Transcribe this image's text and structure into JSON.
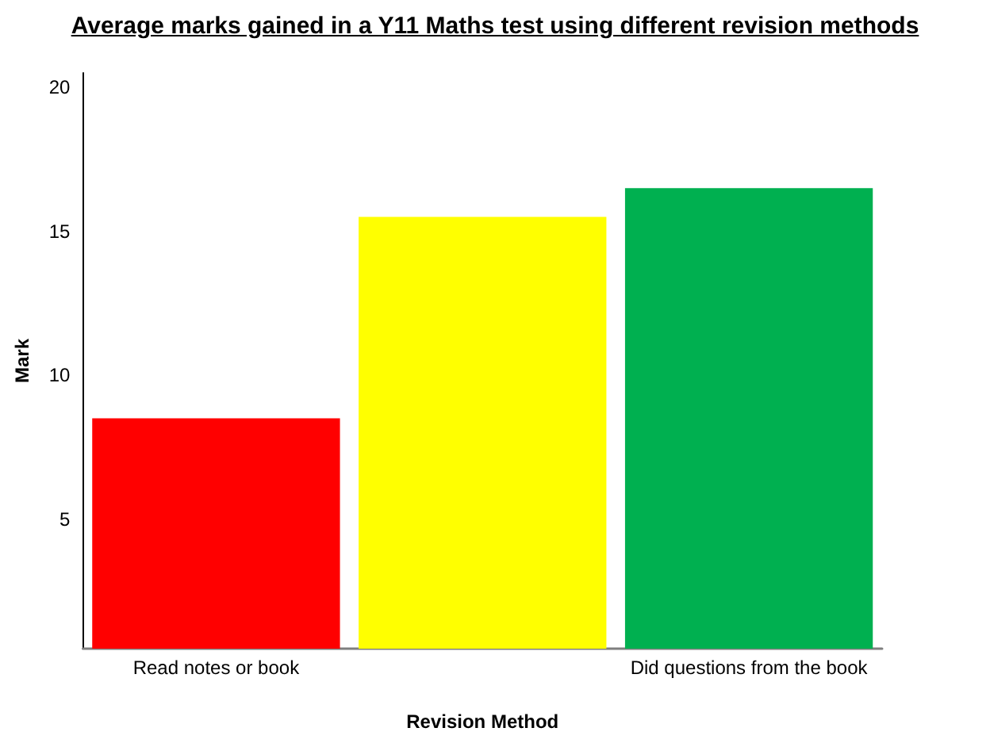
{
  "chart_data": {
    "type": "bar",
    "title": "Average marks gained in a Y11 Maths test using different revision methods",
    "xlabel": "Revision Method",
    "ylabel": "Mark",
    "categories": [
      "Read notes or book",
      null,
      "Did questions from the book"
    ],
    "values": [
      8.5,
      15.5,
      16.5
    ],
    "colors": [
      "#ff0000",
      "#ffff00",
      "#00b050"
    ],
    "ylim": [
      0.5,
      20.5
    ],
    "yticks": [
      5,
      10,
      15,
      20
    ]
  }
}
